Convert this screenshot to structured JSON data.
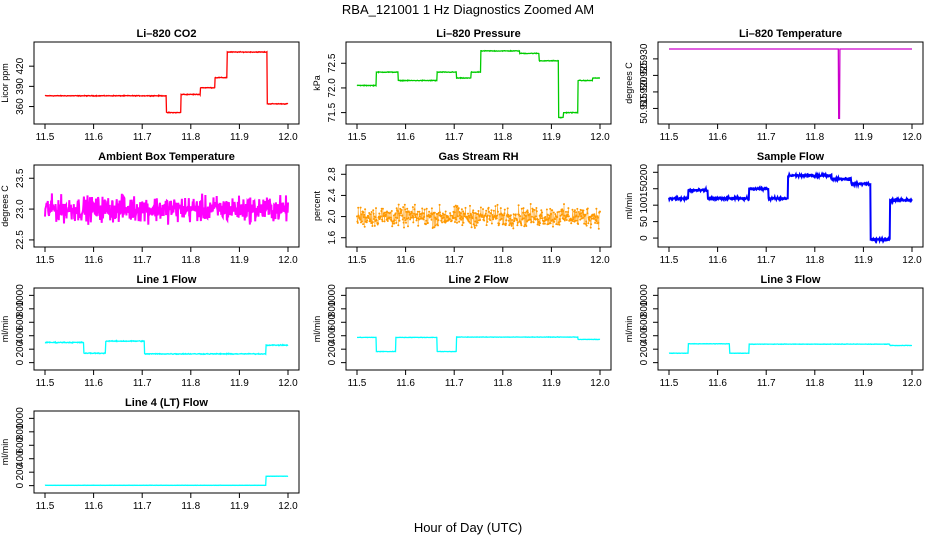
{
  "figure": {
    "title": "RBA_121001  1 Hz Diagnostics Zoomed AM",
    "xlabel": "Hour of Day (UTC)"
  },
  "chart_data": [
    {
      "type": "line",
      "title": "Li–820 CO2",
      "ylabel": "Licor ppm",
      "color": "#ff0000",
      "xlim": [
        11.5,
        12.0
      ],
      "ylim": [
        340,
        450
      ],
      "xticks": [
        11.5,
        11.6,
        11.7,
        11.8,
        11.9,
        12.0
      ],
      "xtick_labels": [
        "11.5",
        "11.6",
        "11.7",
        "11.8",
        "11.9",
        "12.0"
      ],
      "yticks": [
        360,
        390,
        420
      ],
      "ytick_labels": [
        "360",
        "390",
        "420"
      ],
      "noise": 0.8,
      "segments": [
        [
          11.5,
          11.75,
          376
        ],
        [
          11.75,
          11.78,
          351
        ],
        [
          11.78,
          11.82,
          378
        ],
        [
          11.82,
          11.85,
          388
        ],
        [
          11.85,
          11.875,
          403
        ],
        [
          11.875,
          11.957,
          441
        ],
        [
          11.957,
          12.0,
          364
        ]
      ]
    },
    {
      "type": "line",
      "title": "Li–820 Pressure",
      "ylabel": "kPa",
      "color": "#00cc00",
      "xlim": [
        11.5,
        12.0
      ],
      "ylim": [
        71.35,
        72.85
      ],
      "xticks": [
        11.5,
        11.6,
        11.7,
        11.8,
        11.9,
        12.0
      ],
      "xtick_labels": [
        "11.5",
        "11.6",
        "11.7",
        "11.8",
        "11.9",
        "12.0"
      ],
      "yticks": [
        71.5,
        72.0,
        72.5
      ],
      "ytick_labels": [
        "71.5",
        "72.0",
        "72.5"
      ],
      "noise": 0.01,
      "segments": [
        [
          11.5,
          11.54,
          72.05
        ],
        [
          11.54,
          11.585,
          72.32
        ],
        [
          11.585,
          11.665,
          72.15
        ],
        [
          11.665,
          11.705,
          72.32
        ],
        [
          11.705,
          11.735,
          72.2
        ],
        [
          11.735,
          11.755,
          72.32
        ],
        [
          11.755,
          11.835,
          72.75
        ],
        [
          11.835,
          11.875,
          72.7
        ],
        [
          11.875,
          11.915,
          72.55
        ],
        [
          11.915,
          11.925,
          71.4
        ],
        [
          11.925,
          11.955,
          71.5
        ],
        [
          11.955,
          11.985,
          72.15
        ],
        [
          11.985,
          12.0,
          72.2
        ]
      ]
    },
    {
      "type": "line",
      "title": "Li–820 Temperature",
      "ylabel": "degrees C",
      "color": "#cc00cc",
      "xlim": [
        11.5,
        12.0
      ],
      "ylim": [
        50.9115,
        50.9339
      ],
      "xticks": [
        11.5,
        11.6,
        11.7,
        11.8,
        11.9,
        12.0
      ],
      "xtick_labels": [
        "11.5",
        "11.6",
        "11.7",
        "11.8",
        "11.9",
        "12.0"
      ],
      "yticks": [
        50.915,
        50.92,
        50.925,
        50.93
      ],
      "ytick_labels": [
        "50.915",
        "50.920",
        "50.925",
        "50.930"
      ],
      "noise": 0,
      "segments": [
        [
          11.5,
          11.849,
          50.933
        ],
        [
          11.849,
          11.851,
          50.912
        ],
        [
          11.851,
          12.0,
          50.933
        ]
      ]
    },
    {
      "type": "line",
      "title": "Ambient Box Temperature",
      "ylabel": "degrees C",
      "color": "#ff00ff",
      "xlim": [
        11.5,
        12.0
      ],
      "ylim": [
        22.45,
        23.65
      ],
      "xticks": [
        11.5,
        11.6,
        11.7,
        11.8,
        11.9,
        12.0
      ],
      "xtick_labels": [
        "11.5",
        "11.6",
        "11.7",
        "11.8",
        "11.9",
        "12.0"
      ],
      "yticks": [
        22.5,
        23.0,
        23.5
      ],
      "ytick_labels": [
        "22.5",
        "23.0",
        "23.5"
      ],
      "noise": 0.3,
      "segments": [
        [
          11.5,
          12.0,
          23.0
        ]
      ]
    },
    {
      "type": "scatter",
      "title": "Gas Stream RH",
      "ylabel": "percent",
      "color": "#ff9900",
      "xlim": [
        11.5,
        12.0
      ],
      "ylim": [
        1.5,
        2.9
      ],
      "xticks": [
        11.5,
        11.6,
        11.7,
        11.8,
        11.9,
        12.0
      ],
      "xtick_labels": [
        "11.5",
        "11.6",
        "11.7",
        "11.8",
        "11.9",
        "12.0"
      ],
      "yticks": [
        1.6,
        2.0,
        2.4,
        2.8
      ],
      "ytick_labels": [
        "1.6",
        "2.0",
        "2.4",
        "2.8"
      ],
      "noise": 0.28,
      "segments": [
        [
          11.5,
          12.0,
          2.0
        ]
      ]
    },
    {
      "type": "line",
      "title": "Sample Flow",
      "ylabel": "ml/min",
      "color": "#0000ff",
      "xlim": [
        11.5,
        12.0
      ],
      "ylim": [
        -15,
        210
      ],
      "xticks": [
        11.5,
        11.6,
        11.7,
        11.8,
        11.9,
        12.0
      ],
      "xtick_labels": [
        "11.5",
        "11.6",
        "11.7",
        "11.8",
        "11.9",
        "12.0"
      ],
      "yticks": [
        0,
        50,
        100,
        150,
        200
      ],
      "ytick_labels": [
        "0",
        "50",
        "100",
        "150",
        "200"
      ],
      "noise": 6,
      "segments": [
        [
          11.5,
          11.54,
          120
        ],
        [
          11.54,
          11.58,
          145
        ],
        [
          11.58,
          11.665,
          120
        ],
        [
          11.665,
          11.705,
          150
        ],
        [
          11.705,
          11.745,
          120
        ],
        [
          11.745,
          11.835,
          190
        ],
        [
          11.835,
          11.875,
          180
        ],
        [
          11.875,
          11.915,
          165
        ],
        [
          11.915,
          11.955,
          -5
        ],
        [
          11.955,
          12.0,
          115
        ]
      ]
    },
    {
      "type": "line",
      "title": "Line 1 Flow",
      "ylabel": "ml/min",
      "color": "#00ffff",
      "xlim": [
        11.5,
        12.0
      ],
      "ylim": [
        -50,
        1050
      ],
      "xticks": [
        11.5,
        11.6,
        11.7,
        11.8,
        11.9,
        12.0
      ],
      "xtick_labels": [
        "11.5",
        "11.6",
        "11.7",
        "11.8",
        "11.9",
        "12.0"
      ],
      "yticks": [
        0,
        200,
        400,
        600,
        800,
        1000
      ],
      "ytick_labels": [
        "0",
        "200",
        "400",
        "600",
        "800",
        "1000"
      ],
      "noise": 10,
      "segments": [
        [
          11.5,
          11.58,
          300
        ],
        [
          11.58,
          11.625,
          140
        ],
        [
          11.625,
          11.705,
          320
        ],
        [
          11.705,
          11.955,
          130
        ],
        [
          11.955,
          12.0,
          260
        ]
      ]
    },
    {
      "type": "line",
      "title": "Line 2 Flow",
      "ylabel": "ml/min",
      "color": "#00ffff",
      "xlim": [
        11.5,
        12.0
      ],
      "ylim": [
        -50,
        1050
      ],
      "xticks": [
        11.5,
        11.6,
        11.7,
        11.8,
        11.9,
        12.0
      ],
      "xtick_labels": [
        "11.5",
        "11.6",
        "11.7",
        "11.8",
        "11.9",
        "12.0"
      ],
      "yticks": [
        0,
        200,
        400,
        600,
        800,
        1000
      ],
      "ytick_labels": [
        "0",
        "200",
        "400",
        "600",
        "800",
        "1000"
      ],
      "noise": 4,
      "segments": [
        [
          11.5,
          11.54,
          375
        ],
        [
          11.54,
          11.58,
          165
        ],
        [
          11.58,
          11.665,
          375
        ],
        [
          11.665,
          11.705,
          165
        ],
        [
          11.705,
          11.955,
          380
        ],
        [
          11.955,
          12.0,
          345
        ]
      ]
    },
    {
      "type": "line",
      "title": "Line 3 Flow",
      "ylabel": "ml/min",
      "color": "#00ffff",
      "xlim": [
        11.5,
        12.0
      ],
      "ylim": [
        -50,
        1050
      ],
      "xticks": [
        11.5,
        11.6,
        11.7,
        11.8,
        11.9,
        12.0
      ],
      "xtick_labels": [
        "11.5",
        "11.6",
        "11.7",
        "11.8",
        "11.9",
        "12.0"
      ],
      "yticks": [
        0,
        200,
        400,
        600,
        800,
        1000
      ],
      "ytick_labels": [
        "0",
        "200",
        "400",
        "600",
        "800",
        "1000"
      ],
      "noise": 4,
      "segments": [
        [
          11.5,
          11.54,
          140
        ],
        [
          11.54,
          11.625,
          280
        ],
        [
          11.625,
          11.665,
          140
        ],
        [
          11.665,
          11.955,
          275
        ],
        [
          11.955,
          12.0,
          255
        ]
      ]
    },
    {
      "type": "line",
      "title": "Line 4 (LT) Flow",
      "ylabel": "ml/min",
      "color": "#00ffff",
      "xlim": [
        11.5,
        12.0
      ],
      "ylim": [
        -50,
        1050
      ],
      "xticks": [
        11.5,
        11.6,
        11.7,
        11.8,
        11.9,
        12.0
      ],
      "xtick_labels": [
        "11.5",
        "11.6",
        "11.7",
        "11.8",
        "11.9",
        "12.0"
      ],
      "yticks": [
        0,
        200,
        400,
        600,
        800,
        1000
      ],
      "ytick_labels": [
        "0",
        "200",
        "400",
        "600",
        "800",
        "1000"
      ],
      "noise": 2,
      "segments": [
        [
          11.5,
          11.955,
          5
        ],
        [
          11.955,
          12.0,
          140
        ]
      ]
    }
  ]
}
